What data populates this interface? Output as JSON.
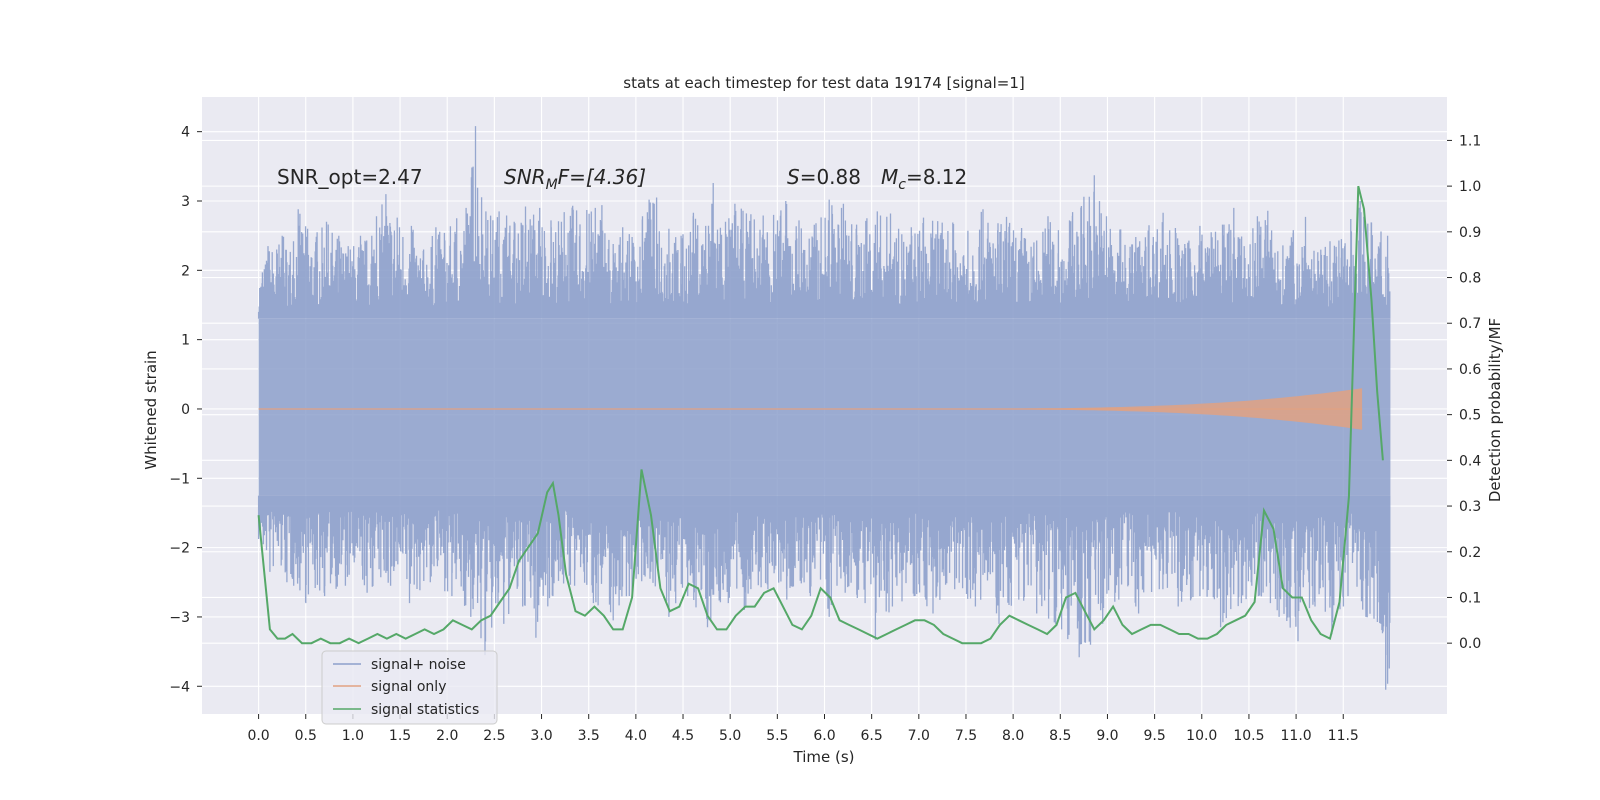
{
  "chart_data": {
    "type": "line",
    "title": "stats at each timestep for test data 19174 [signal=1]",
    "xlabel": "Time (s)",
    "ylabel_left": "Whitened strain",
    "ylabel_right": "Detection probability/MF",
    "xlim": [
      -0.6,
      12.6
    ],
    "ylim_left": [
      -4.4,
      4.5
    ],
    "ylim_right": [
      -0.155,
      1.195
    ],
    "x_ticks": [
      "0.0",
      "0.5",
      "1.0",
      "1.5",
      "2.0",
      "2.5",
      "3.0",
      "3.5",
      "4.0",
      "4.5",
      "5.0",
      "5.5",
      "6.0",
      "6.5",
      "7.0",
      "7.5",
      "8.0",
      "8.5",
      "9.0",
      "9.5",
      "10.0",
      "10.5",
      "11.0",
      "11.5"
    ],
    "y_ticks_left": [
      "4",
      "3",
      "2",
      "1",
      "0",
      "−1",
      "−2",
      "−3",
      "−4"
    ],
    "y_ticks_right": [
      "1.1",
      "1.0",
      "0.9",
      "0.8",
      "0.7",
      "0.6",
      "0.5",
      "0.4",
      "0.3",
      "0.2",
      "0.1",
      "0.0"
    ],
    "annotations": {
      "snr_opt": "SNR_opt=2.47",
      "snr_mf_main": "SNR",
      "snr_mf_sub": "M",
      "snr_mf_rest": "F=[4.36]",
      "s_main": "S",
      "s_rest": "=0.88",
      "mc_main": "M",
      "mc_sub": "c",
      "mc_rest": "=8.12"
    },
    "legend": [
      "signal+ noise",
      "signal only",
      "signal statistics"
    ],
    "legend_position": "lower-left",
    "colors": {
      "noise": "#8da0cb",
      "signal": "#e1a182",
      "stats": "#55a868",
      "background": "#eaeaf2",
      "grid": "#ffffff"
    },
    "noise": {
      "t_range": [
        0.0,
        12.0
      ],
      "core_band": [
        -1.25,
        1.3
      ],
      "spikes_top": [
        [
          0.04,
          1.97
        ],
        [
          0.1,
          2.35
        ],
        [
          0.25,
          2.5
        ],
        [
          0.37,
          2.42
        ],
        [
          0.42,
          2.88
        ],
        [
          0.52,
          2.6
        ],
        [
          0.62,
          2.55
        ],
        [
          0.72,
          2.7
        ],
        [
          0.85,
          2.5
        ],
        [
          0.95,
          2.35
        ],
        [
          1.08,
          2.5
        ],
        [
          1.2,
          2.5
        ],
        [
          1.25,
          2.78
        ],
        [
          1.35,
          3.1
        ],
        [
          1.47,
          2.76
        ],
        [
          1.62,
          2.64
        ],
        [
          1.75,
          2.3
        ],
        [
          1.88,
          2.62
        ],
        [
          1.97,
          2.54
        ],
        [
          2.1,
          2.75
        ],
        [
          2.2,
          2.9
        ],
        [
          2.3,
          4.08
        ],
        [
          2.41,
          2.85
        ],
        [
          2.55,
          2.85
        ],
        [
          2.63,
          2.79
        ],
        [
          2.71,
          2.7
        ],
        [
          2.83,
          2.92
        ],
        [
          2.98,
          2.9
        ],
        [
          3.1,
          2.72
        ],
        [
          3.24,
          2.84
        ],
        [
          3.33,
          2.93
        ],
        [
          3.48,
          2.87
        ],
        [
          3.57,
          2.9
        ],
        [
          3.64,
          2.94
        ],
        [
          3.76,
          2.38
        ],
        [
          3.86,
          2.62
        ],
        [
          3.96,
          2.48
        ],
        [
          4.07,
          2.78
        ],
        [
          4.14,
          3.02
        ],
        [
          4.22,
          3.05
        ],
        [
          4.35,
          2.6
        ],
        [
          4.48,
          2.5
        ],
        [
          4.61,
          2.83
        ],
        [
          4.74,
          2.64
        ],
        [
          4.82,
          3.26
        ],
        [
          4.95,
          2.7
        ],
        [
          5.05,
          2.96
        ],
        [
          5.22,
          2.81
        ],
        [
          5.35,
          2.79
        ],
        [
          5.46,
          2.8
        ],
        [
          5.59,
          3.0
        ],
        [
          5.73,
          2.72
        ],
        [
          5.91,
          2.68
        ],
        [
          6.05,
          3.02
        ],
        [
          6.2,
          2.96
        ],
        [
          6.34,
          2.66
        ],
        [
          6.45,
          2.75
        ],
        [
          6.56,
          2.85
        ],
        [
          6.7,
          2.82
        ],
        [
          6.82,
          2.52
        ],
        [
          6.92,
          2.62
        ],
        [
          7.05,
          2.76
        ],
        [
          7.2,
          2.71
        ],
        [
          7.36,
          2.69
        ],
        [
          7.52,
          2.57
        ],
        [
          7.68,
          2.88
        ],
        [
          7.84,
          2.68
        ],
        [
          7.93,
          2.77
        ],
        [
          8.09,
          2.61
        ],
        [
          8.25,
          2.43
        ],
        [
          8.37,
          2.78
        ],
        [
          8.48,
          2.58
        ],
        [
          8.63,
          2.84
        ],
        [
          8.75,
          3.06
        ],
        [
          8.86,
          3.37
        ],
        [
          8.99,
          2.78
        ],
        [
          9.14,
          2.59
        ],
        [
          9.3,
          2.48
        ],
        [
          9.44,
          2.65
        ],
        [
          9.59,
          2.83
        ],
        [
          9.72,
          2.61
        ],
        [
          9.82,
          2.38
        ],
        [
          9.98,
          2.64
        ],
        [
          10.1,
          2.55
        ],
        [
          10.22,
          2.66
        ],
        [
          10.34,
          2.9
        ],
        [
          10.45,
          2.35
        ],
        [
          10.59,
          2.78
        ],
        [
          10.7,
          2.86
        ],
        [
          10.86,
          2.36
        ],
        [
          10.97,
          2.58
        ],
        [
          11.1,
          2.77
        ],
        [
          11.23,
          2.26
        ],
        [
          11.36,
          2.42
        ],
        [
          11.48,
          2.45
        ],
        [
          11.58,
          2.74
        ],
        [
          11.68,
          3.0
        ],
        [
          11.8,
          2.69
        ],
        [
          11.9,
          2.56
        ],
        [
          11.97,
          2.5
        ]
      ],
      "spikes_bottom": [
        [
          0.05,
          -1.95
        ],
        [
          0.12,
          -2.35
        ],
        [
          0.3,
          -2.5
        ],
        [
          0.5,
          -2.8
        ],
        [
          0.7,
          -2.7
        ],
        [
          0.92,
          -2.55
        ],
        [
          1.15,
          -2.65
        ],
        [
          1.4,
          -2.55
        ],
        [
          1.6,
          -2.8
        ],
        [
          1.82,
          -2.5
        ],
        [
          2.05,
          -2.7
        ],
        [
          2.25,
          -3.0
        ],
        [
          2.4,
          -3.55
        ],
        [
          2.6,
          -3.1
        ],
        [
          2.8,
          -2.85
        ],
        [
          2.94,
          -3.3
        ],
        [
          3.12,
          -2.7
        ],
        [
          3.35,
          -2.55
        ],
        [
          3.55,
          -2.8
        ],
        [
          3.76,
          -3.05
        ],
        [
          3.96,
          -2.65
        ],
        [
          4.15,
          -2.45
        ],
        [
          4.35,
          -3.0
        ],
        [
          4.55,
          -2.7
        ],
        [
          4.76,
          -3.15
        ],
        [
          4.98,
          -2.8
        ],
        [
          5.15,
          -2.9
        ],
        [
          5.4,
          -2.6
        ],
        [
          5.6,
          -2.75
        ],
        [
          5.85,
          -2.7
        ],
        [
          6.05,
          -3.0
        ],
        [
          6.22,
          -2.65
        ],
        [
          6.43,
          -2.8
        ],
        [
          6.54,
          -3.33
        ],
        [
          6.72,
          -2.85
        ],
        [
          6.95,
          -2.7
        ],
        [
          7.15,
          -2.95
        ],
        [
          7.38,
          -2.6
        ],
        [
          7.6,
          -2.85
        ],
        [
          7.85,
          -3.1
        ],
        [
          8.06,
          -2.75
        ],
        [
          8.25,
          -2.95
        ],
        [
          8.45,
          -3.1
        ],
        [
          8.58,
          -3.32
        ],
        [
          8.7,
          -3.58
        ],
        [
          8.82,
          -3.4
        ],
        [
          8.95,
          -3.1
        ],
        [
          9.12,
          -2.75
        ],
        [
          9.33,
          -2.95
        ],
        [
          9.55,
          -2.6
        ],
        [
          9.75,
          -2.85
        ],
        [
          9.98,
          -2.7
        ],
        [
          10.2,
          -3.15
        ],
        [
          10.42,
          -2.8
        ],
        [
          10.6,
          -2.7
        ],
        [
          10.82,
          -3.0
        ],
        [
          11.02,
          -3.35
        ],
        [
          11.2,
          -2.85
        ],
        [
          11.38,
          -3.25
        ],
        [
          11.55,
          -2.7
        ],
        [
          11.74,
          -3.0
        ],
        [
          11.9,
          -3.1
        ],
        [
          11.95,
          -4.05
        ]
      ]
    },
    "signal_only": {
      "start": 7.2,
      "end": 11.7,
      "amp_start": 0.005,
      "amp_end": 0.3
    },
    "statistics": {
      "x": [
        0.0,
        0.12,
        0.2,
        0.28,
        0.36,
        0.46,
        0.56,
        0.66,
        0.76,
        0.86,
        0.96,
        1.06,
        1.16,
        1.26,
        1.36,
        1.46,
        1.56,
        1.66,
        1.76,
        1.86,
        1.96,
        2.06,
        2.16,
        2.26,
        2.36,
        2.46,
        2.56,
        2.66,
        2.76,
        2.86,
        2.96,
        3.06,
        3.12,
        3.18,
        3.26,
        3.36,
        3.46,
        3.56,
        3.66,
        3.76,
        3.86,
        3.96,
        4.06,
        4.16,
        4.26,
        4.36,
        4.46,
        4.56,
        4.66,
        4.76,
        4.86,
        4.96,
        5.06,
        5.16,
        5.26,
        5.36,
        5.46,
        5.56,
        5.66,
        5.76,
        5.86,
        5.96,
        6.06,
        6.16,
        6.26,
        6.36,
        6.46,
        6.56,
        6.66,
        6.76,
        6.86,
        6.96,
        7.06,
        7.16,
        7.26,
        7.36,
        7.46,
        7.56,
        7.66,
        7.76,
        7.86,
        7.96,
        8.06,
        8.16,
        8.26,
        8.36,
        8.46,
        8.56,
        8.66,
        8.76,
        8.86,
        8.96,
        9.06,
        9.16,
        9.26,
        9.36,
        9.46,
        9.56,
        9.66,
        9.76,
        9.86,
        9.96,
        10.06,
        10.16,
        10.26,
        10.36,
        10.46,
        10.56,
        10.66,
        10.76,
        10.86,
        10.96,
        11.06,
        11.16,
        11.26,
        11.36,
        11.46,
        11.56,
        11.66,
        11.72,
        11.8,
        11.86,
        11.92
      ],
      "y": [
        0.28,
        0.03,
        0.01,
        0.01,
        0.02,
        0.0,
        0.0,
        0.01,
        0.0,
        0.0,
        0.01,
        0.0,
        0.01,
        0.02,
        0.01,
        0.02,
        0.01,
        0.02,
        0.03,
        0.02,
        0.03,
        0.05,
        0.04,
        0.03,
        0.05,
        0.06,
        0.09,
        0.12,
        0.18,
        0.21,
        0.24,
        0.33,
        0.35,
        0.28,
        0.15,
        0.07,
        0.06,
        0.08,
        0.06,
        0.03,
        0.03,
        0.1,
        0.38,
        0.28,
        0.12,
        0.07,
        0.08,
        0.13,
        0.12,
        0.06,
        0.03,
        0.03,
        0.06,
        0.08,
        0.08,
        0.11,
        0.12,
        0.08,
        0.04,
        0.03,
        0.06,
        0.12,
        0.1,
        0.05,
        0.04,
        0.03,
        0.02,
        0.01,
        0.02,
        0.03,
        0.04,
        0.05,
        0.05,
        0.04,
        0.02,
        0.01,
        0.0,
        0.0,
        0.0,
        0.01,
        0.04,
        0.06,
        0.05,
        0.04,
        0.03,
        0.02,
        0.04,
        0.1,
        0.11,
        0.07,
        0.03,
        0.05,
        0.08,
        0.04,
        0.02,
        0.03,
        0.04,
        0.04,
        0.03,
        0.02,
        0.02,
        0.01,
        0.01,
        0.02,
        0.04,
        0.05,
        0.06,
        0.09,
        0.29,
        0.25,
        0.12,
        0.1,
        0.1,
        0.05,
        0.02,
        0.01,
        0.09,
        0.32,
        1.0,
        0.95,
        0.75,
        0.55,
        0.4
      ]
    }
  }
}
